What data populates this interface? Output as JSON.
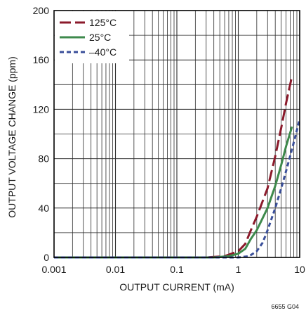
{
  "chart_data": {
    "type": "line",
    "xlabel": "OUTPUT CURRENT (mA)",
    "ylabel": "OUTPUT VOLTAGE CHANGE (ppm)",
    "x_scale": "log",
    "xlim": [
      0.001,
      10
    ],
    "ylim": [
      0,
      200
    ],
    "x_ticks": [
      "0.001",
      "0.01",
      "0.1",
      "1",
      "10"
    ],
    "y_ticks": [
      "0",
      "40",
      "80",
      "120",
      "160",
      "200"
    ],
    "grid": true,
    "legend_position": "top-left",
    "footnote": "6655 G04",
    "series": [
      {
        "name": "125°C",
        "color": "#8b1a2b",
        "dash": "long-dash",
        "points": [
          [
            0.001,
            0
          ],
          [
            0.1,
            0
          ],
          [
            0.3,
            0
          ],
          [
            0.6,
            1
          ],
          [
            1,
            5
          ],
          [
            1.3,
            11
          ],
          [
            1.6,
            22
          ],
          [
            2,
            33
          ],
          [
            3,
            56
          ],
          [
            4,
            82
          ],
          [
            5,
            105
          ],
          [
            6,
            125
          ],
          [
            7.5,
            147
          ]
        ]
      },
      {
        "name": "25°C",
        "color": "#3e8a4c",
        "dash": "solid",
        "points": [
          [
            0.001,
            0
          ],
          [
            0.1,
            0
          ],
          [
            0.4,
            0
          ],
          [
            0.7,
            1
          ],
          [
            1,
            3
          ],
          [
            1.3,
            7
          ],
          [
            1.6,
            15
          ],
          [
            2,
            22
          ],
          [
            3,
            40
          ],
          [
            4,
            58
          ],
          [
            5,
            75
          ],
          [
            6,
            90
          ],
          [
            7.5,
            106
          ]
        ]
      },
      {
        "name": "–40°C",
        "color": "#3a4f9a",
        "dash": "short-dash",
        "points": [
          [
            0.001,
            0
          ],
          [
            0.1,
            0
          ],
          [
            1,
            0
          ],
          [
            1.5,
            1
          ],
          [
            2,
            5
          ],
          [
            2.5,
            12
          ],
          [
            3,
            22
          ],
          [
            4,
            40
          ],
          [
            5,
            56
          ],
          [
            6,
            70
          ],
          [
            7,
            82
          ],
          [
            8,
            93
          ],
          [
            9,
            103
          ],
          [
            10,
            112
          ]
        ]
      }
    ]
  }
}
